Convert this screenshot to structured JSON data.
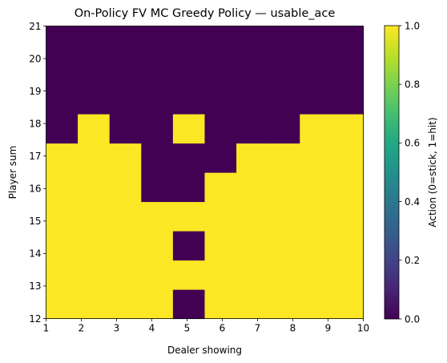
{
  "chart_data": {
    "type": "heatmap",
    "title": "On-Policy FV MC Greedy Policy — usable_ace",
    "xlabel": "Dealer showing",
    "ylabel": "Player sum",
    "colorbar_label": "Action (0=stick, 1=hit)",
    "colormap": "viridis",
    "colors": {
      "stick": "#440154",
      "hit": "#fde725"
    },
    "x_range": [
      1,
      10
    ],
    "y_range": [
      12,
      21
    ],
    "x_ticks": [
      "1",
      "2",
      "3",
      "4",
      "5",
      "6",
      "7",
      "8",
      "9",
      "10"
    ],
    "y_ticks": [
      "12",
      "13",
      "14",
      "15",
      "16",
      "17",
      "18",
      "19",
      "20",
      "21"
    ],
    "colorbar_range": [
      0.0,
      1.0
    ],
    "colorbar_ticks": [
      "0.0",
      "0.2",
      "0.4",
      "0.6",
      "0.8",
      "1.0"
    ],
    "columns": [
      "1",
      "2",
      "3",
      "4",
      "5",
      "6",
      "7",
      "8",
      "9",
      "10"
    ],
    "rows": [
      "12",
      "13",
      "14",
      "15",
      "16",
      "17",
      "18",
      "19",
      "20",
      "21"
    ],
    "values": [
      [
        1,
        1,
        1,
        1,
        0,
        1,
        1,
        1,
        1,
        1
      ],
      [
        1,
        1,
        1,
        1,
        1,
        1,
        1,
        1,
        1,
        1
      ],
      [
        1,
        1,
        1,
        1,
        0,
        1,
        1,
        1,
        1,
        1
      ],
      [
        1,
        1,
        1,
        1,
        1,
        1,
        1,
        1,
        1,
        1
      ],
      [
        1,
        1,
        1,
        0,
        0,
        1,
        1,
        1,
        1,
        1
      ],
      [
        1,
        1,
        1,
        0,
        0,
        0,
        1,
        1,
        1,
        1
      ],
      [
        0,
        1,
        0,
        0,
        1,
        0,
        0,
        0,
        1,
        1
      ],
      [
        0,
        0,
        0,
        0,
        0,
        0,
        0,
        0,
        0,
        0
      ],
      [
        0,
        0,
        0,
        0,
        0,
        0,
        0,
        0,
        0,
        0
      ],
      [
        0,
        0,
        0,
        0,
        0,
        0,
        0,
        0,
        0,
        0
      ]
    ]
  }
}
